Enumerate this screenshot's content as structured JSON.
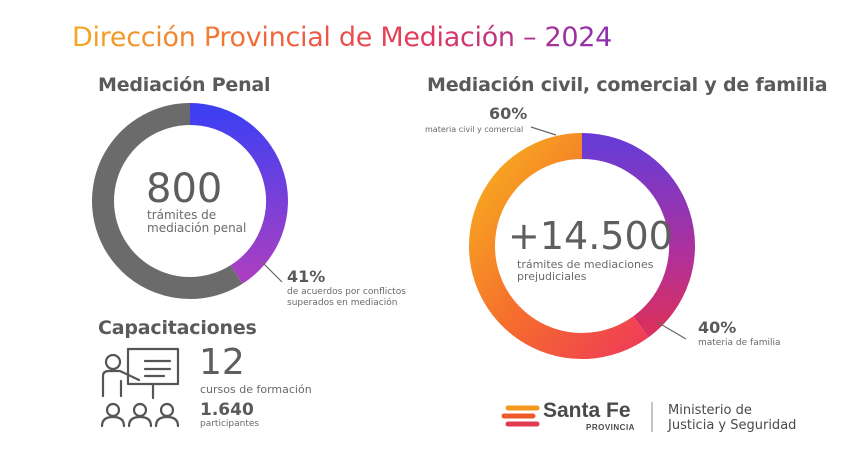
{
  "title": "Dirección Provincial de Mediación – 2024",
  "penal": {
    "heading": "Mediación Penal",
    "total": "800",
    "total_label_1": "trámites de",
    "total_label_2": "mediación penal",
    "pct_label": "41%",
    "pct_desc_1": "de acuerdos por conflictos",
    "pct_desc_2": "superados en mediación"
  },
  "civil": {
    "heading": "Mediación civil, comercial y de familia",
    "total": "+14.500",
    "total_label_1": "trámites de mediaciones",
    "total_label_2": "prejudiciales",
    "a_pct": "60%",
    "a_desc": "materia civil y comercial",
    "b_pct": "40%",
    "b_desc": "materia de familia"
  },
  "capacitaciones": {
    "heading": "Capacitaciones",
    "cursos_num": "12",
    "cursos_label": "cursos de formación",
    "participantes_num": "1.640",
    "participantes_label": "participantes"
  },
  "footer": {
    "brand": "Santa Fe",
    "brand_sub": "PROVINCIA",
    "ministry_1": "Ministerio de",
    "ministry_2": "Justicia y Seguridad"
  },
  "chart_data": [
    {
      "type": "pie",
      "title": "Mediación Penal",
      "categories": [
        "de acuerdos por conflictos superados en mediación",
        ""
      ],
      "values": [
        41,
        59
      ],
      "colors": [
        "#4b3df0",
        "#6b6b6b"
      ],
      "center_label": "800 trámites de mediación penal"
    },
    {
      "type": "pie",
      "title": "Mediación civil, comercial y de familia",
      "categories": [
        "materia de familia",
        "materia civil y comercial"
      ],
      "values": [
        40,
        60
      ],
      "colors": [
        "#8a2fb8",
        "#f59a22"
      ],
      "center_label": "+14.500 trámites de mediaciones prejudiciales"
    }
  ]
}
